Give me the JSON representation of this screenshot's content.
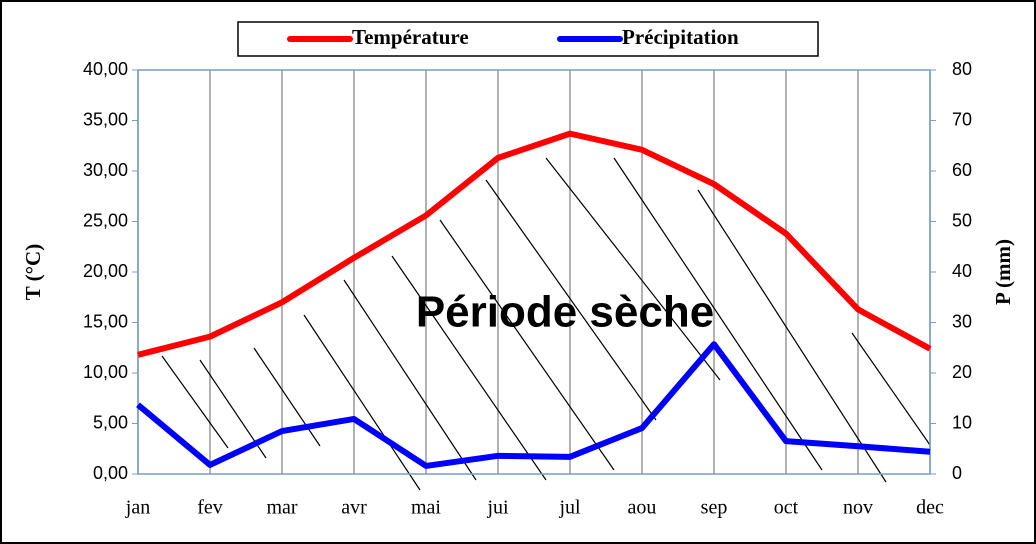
{
  "chart_data": {
    "type": "line",
    "categories": [
      "jan",
      "fev",
      "mar",
      "avr",
      "mai",
      "jui",
      "jul",
      "aou",
      "sep",
      "oct",
      "nov",
      "dec"
    ],
    "series": [
      {
        "name": "Température",
        "color": "#ff0000",
        "values": [
          11.8,
          13.6,
          17.0,
          21.4,
          25.6,
          31.3,
          33.7,
          32.1,
          28.7,
          23.8,
          16.3,
          12.4
        ]
      },
      {
        "name": "Précipitation",
        "color": "#0000ff",
        "axis": "y2",
        "values": [
          13.7,
          1.8,
          8.5,
          10.9,
          1.6,
          3.6,
          3.4,
          9.1,
          25.7,
          6.5,
          5.5,
          4.4
        ]
      }
    ],
    "ylabel": "T (°C)",
    "y2label": "P (mm)",
    "ylim": [
      0,
      40
    ],
    "yticks": [
      {
        "value": 0,
        "label": "0,00"
      },
      {
        "value": 5,
        "label": "5,00"
      },
      {
        "value": 10,
        "label": "10,00"
      },
      {
        "value": 15,
        "label": "15,00"
      },
      {
        "value": 20,
        "label": "20,00"
      },
      {
        "value": 25,
        "label": "25,00"
      },
      {
        "value": 30,
        "label": "30,00"
      },
      {
        "value": 35,
        "label": "35,00"
      },
      {
        "value": 40,
        "label": "40,00"
      }
    ],
    "y2lim": [
      0,
      80
    ],
    "y2ticks": [
      0,
      10,
      20,
      30,
      40,
      50,
      60,
      70,
      80
    ],
    "annotation": "Période sèche",
    "grid": true,
    "legend": "top"
  }
}
